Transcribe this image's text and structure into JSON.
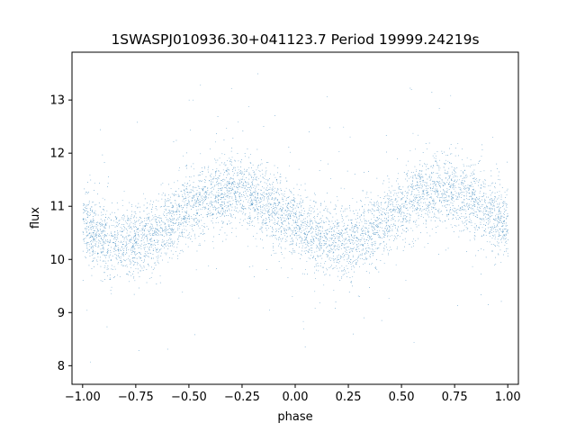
{
  "chart_data": {
    "type": "scatter",
    "title": "1SWASPJ010936.30+041123.7 Period 19999.24219s",
    "xlabel": "phase",
    "ylabel": "flux",
    "xlim": [
      -1.05,
      1.05
    ],
    "ylim": [
      7.65,
      13.9
    ],
    "xticks": [
      -1.0,
      -0.75,
      -0.5,
      -0.25,
      0.0,
      0.25,
      0.5,
      0.75,
      1.0
    ],
    "xtick_labels": [
      "−1.00",
      "−0.75",
      "−0.50",
      "−0.25",
      "0.00",
      "0.25",
      "0.50",
      "0.75",
      "1.00"
    ],
    "yticks": [
      8,
      9,
      10,
      11,
      12,
      13
    ],
    "ytick_labels": [
      "8",
      "9",
      "10",
      "11",
      "12",
      "13"
    ],
    "grid": false,
    "legend": "none",
    "series_color": "#1f77b4",
    "model": {
      "description": "sinusoidal light curve folded over two cycles",
      "mean_flux": 10.8,
      "amplitude": 0.48,
      "peak_phase": -0.3,
      "scatter_sigma": 0.33,
      "outlier_fraction": 0.05,
      "n_points": 36000
    },
    "sample_points": [
      {
        "x": -1.0,
        "y": 10.55
      },
      {
        "x": -0.8,
        "y": 10.35
      },
      {
        "x": -0.55,
        "y": 10.9
      },
      {
        "x": -0.3,
        "y": 11.28
      },
      {
        "x": -0.05,
        "y": 10.7
      },
      {
        "x": 0.2,
        "y": 10.32
      },
      {
        "x": 0.45,
        "y": 10.9
      },
      {
        "x": 0.7,
        "y": 11.28
      },
      {
        "x": 0.95,
        "y": 10.75
      }
    ]
  }
}
